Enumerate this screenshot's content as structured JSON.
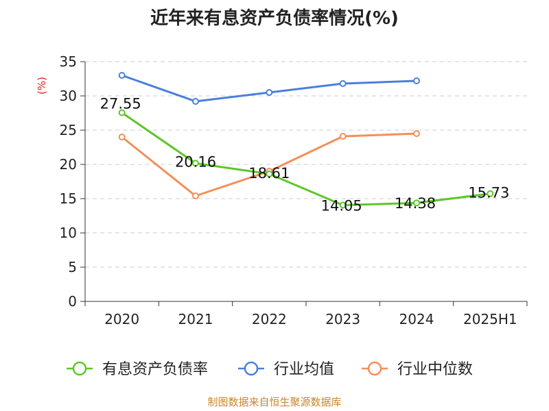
{
  "chart_data": {
    "type": "line",
    "title": "近年来有息资产负债率情况(%)",
    "ylabel": "(%)",
    "xlabel": "",
    "categories": [
      "2020",
      "2021",
      "2022",
      "2023",
      "2024",
      "2025H1"
    ],
    "ylim": [
      0,
      35
    ],
    "yticks": [
      0,
      5,
      10,
      15,
      20,
      25,
      30,
      35
    ],
    "grid": true,
    "legend_position": "bottom",
    "series": [
      {
        "name": "有息资产负债率",
        "color": "#5cc728",
        "values": [
          27.55,
          20.16,
          18.61,
          14.05,
          14.38,
          15.73
        ],
        "labels": [
          "27.55",
          "20.16",
          "18.61",
          "14.05",
          "14.38",
          "15.73"
        ]
      },
      {
        "name": "行业均值",
        "color": "#4a7fdc",
        "values": [
          33.0,
          29.2,
          30.5,
          31.8,
          32.2,
          null
        ]
      },
      {
        "name": "行业中位数",
        "color": "#f58e5a",
        "values": [
          24.0,
          15.4,
          19.0,
          24.1,
          24.5,
          null
        ]
      }
    ],
    "source": "制图数据来自恒生聚源数据库"
  }
}
